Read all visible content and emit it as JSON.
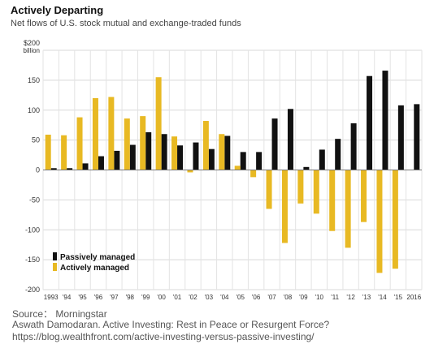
{
  "chart_data": {
    "type": "bar",
    "title": "Actively Departing",
    "subtitle": "Net flows of U.S. stock mutual and exchange-traded funds",
    "y_unit_line1": "$200",
    "y_unit_line2": "billion",
    "ylim": [
      -200,
      200
    ],
    "y_ticks": [
      {
        "value": 200,
        "label": ""
      },
      {
        "value": 150,
        "label": "150"
      },
      {
        "value": 100,
        "label": "100"
      },
      {
        "value": 50,
        "label": "50"
      },
      {
        "value": 0,
        "label": "0"
      },
      {
        "value": -50,
        "label": "-50"
      },
      {
        "value": -100,
        "label": "-100"
      },
      {
        "value": -150,
        "label": "-150"
      },
      {
        "value": -200,
        "label": "-200"
      }
    ],
    "categories": [
      "1993",
      "'94",
      "'95",
      "'96",
      "'97",
      "'98",
      "'99",
      "'00",
      "'01",
      "'02",
      "'03",
      "'04",
      "'05",
      "'06",
      "'07",
      "'08",
      "'09",
      "'10",
      "'11",
      "'12",
      "'13",
      "'14",
      "'15",
      "2016"
    ],
    "series": [
      {
        "name": "Passively managed",
        "color": "#111111",
        "values": [
          3,
          3,
          11,
          23,
          32,
          42,
          63,
          60,
          41,
          46,
          35,
          57,
          30,
          30,
          86,
          102,
          5,
          34,
          52,
          78,
          157,
          166,
          108,
          110
        ]
      },
      {
        "name": "Actively managed",
        "color": "#e8b923",
        "values": [
          59,
          58,
          88,
          120,
          122,
          86,
          90,
          155,
          56,
          -4,
          82,
          60,
          7,
          -12,
          -65,
          -122,
          -56,
          -73,
          -102,
          -130,
          -87,
          -172,
          -165,
          0
        ]
      }
    ],
    "grid": true,
    "legend_position": "bottom-left"
  },
  "source": {
    "line1": "Source： Morningstar",
    "line2": "Aswath Damodaran. Active Investing: Rest in Peace or Resurgent Force?",
    "line3": "https://blog.wealthfront.com/active-investing-versus-passive-investing/"
  }
}
